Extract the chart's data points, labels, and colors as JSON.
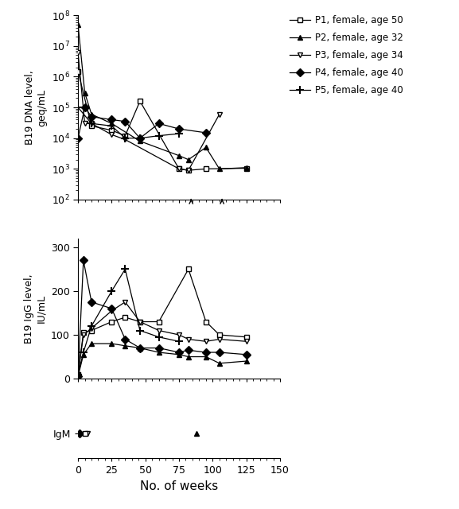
{
  "xlabel": "No. of weeks",
  "ylabel_top": "B19 DNA level,\ngeq/mL",
  "ylabel_mid": "B19 IgG level,\nIU/mL",
  "legend_entries": [
    "P1, female, age 50",
    "P2, female, age 32",
    "P3, female, age 34",
    "P4, female, age 40",
    "P5, female, age 40"
  ],
  "P1": {
    "dna_weeks": [
      0,
      10,
      25,
      35,
      46,
      75,
      82,
      95,
      125
    ],
    "dna_values": [
      1500000,
      25000,
      18000,
      12000,
      160000,
      1000,
      900,
      1000,
      1050
    ],
    "igg_weeks": [
      0,
      4,
      10,
      25,
      35,
      46,
      60,
      82,
      95,
      105,
      125
    ],
    "igg_values": [
      10,
      105,
      110,
      130,
      140,
      130,
      130,
      250,
      130,
      100,
      95
    ]
  },
  "P2": {
    "dna_weeks": [
      0,
      5,
      10,
      25,
      46,
      75,
      82,
      95,
      105,
      125
    ],
    "dna_values": [
      50000000,
      300000,
      60000,
      30000,
      8000,
      2700,
      2000,
      5000,
      1000,
      1100
    ],
    "igg_weeks": [
      0,
      4,
      10,
      25,
      35,
      46,
      60,
      75,
      82,
      95,
      105,
      125
    ],
    "igg_values": [
      5,
      55,
      80,
      80,
      75,
      70,
      60,
      55,
      50,
      50,
      35,
      40
    ]
  },
  "P3": {
    "dna_weeks": [
      0,
      5,
      10,
      25,
      35,
      75,
      82,
      105
    ],
    "dna_values": [
      6000000,
      30000,
      30000,
      13000,
      9000,
      1000,
      900,
      60000
    ],
    "igg_weeks": [
      0,
      4,
      10,
      25,
      35,
      46,
      60,
      75,
      82,
      95,
      105,
      125
    ],
    "igg_values": [
      10,
      100,
      115,
      155,
      175,
      130,
      110,
      100,
      90,
      85,
      90,
      85
    ]
  },
  "P4": {
    "dna_weeks": [
      0,
      5,
      10,
      25,
      35,
      46,
      60,
      75,
      95
    ],
    "dna_values": [
      10000,
      100000,
      50000,
      40000,
      35000,
      10000,
      30000,
      20000,
      15000
    ],
    "igg_weeks": [
      0,
      4,
      10,
      25,
      35,
      46,
      60,
      75,
      82,
      95,
      105,
      125
    ],
    "igg_values": [
      5,
      270,
      175,
      160,
      90,
      70,
      70,
      60,
      65,
      60,
      60,
      55
    ]
  },
  "P5": {
    "dna_weeks": [
      0,
      10,
      25,
      35,
      46,
      60,
      75
    ],
    "dna_values": [
      100000,
      30000,
      25000,
      10000,
      10000,
      12000,
      14000
    ],
    "igg_weeks": [
      0,
      4,
      10,
      25,
      35,
      46,
      60,
      75
    ],
    "igg_values": [
      10,
      60,
      120,
      200,
      250,
      110,
      95,
      85
    ]
  },
  "igm_P1_week": 5,
  "igm_P2_week": 88,
  "igm_P3_week": 7,
  "igm_P4_week": 1,
  "arrow_weeks": [
    84,
    107
  ],
  "dna_ylim": [
    100,
    100000000
  ],
  "igg_ylim": [
    0,
    320
  ],
  "weeks_xlim": [
    0,
    150
  ],
  "xticks": [
    0,
    25,
    50,
    75,
    100,
    125,
    150
  ]
}
